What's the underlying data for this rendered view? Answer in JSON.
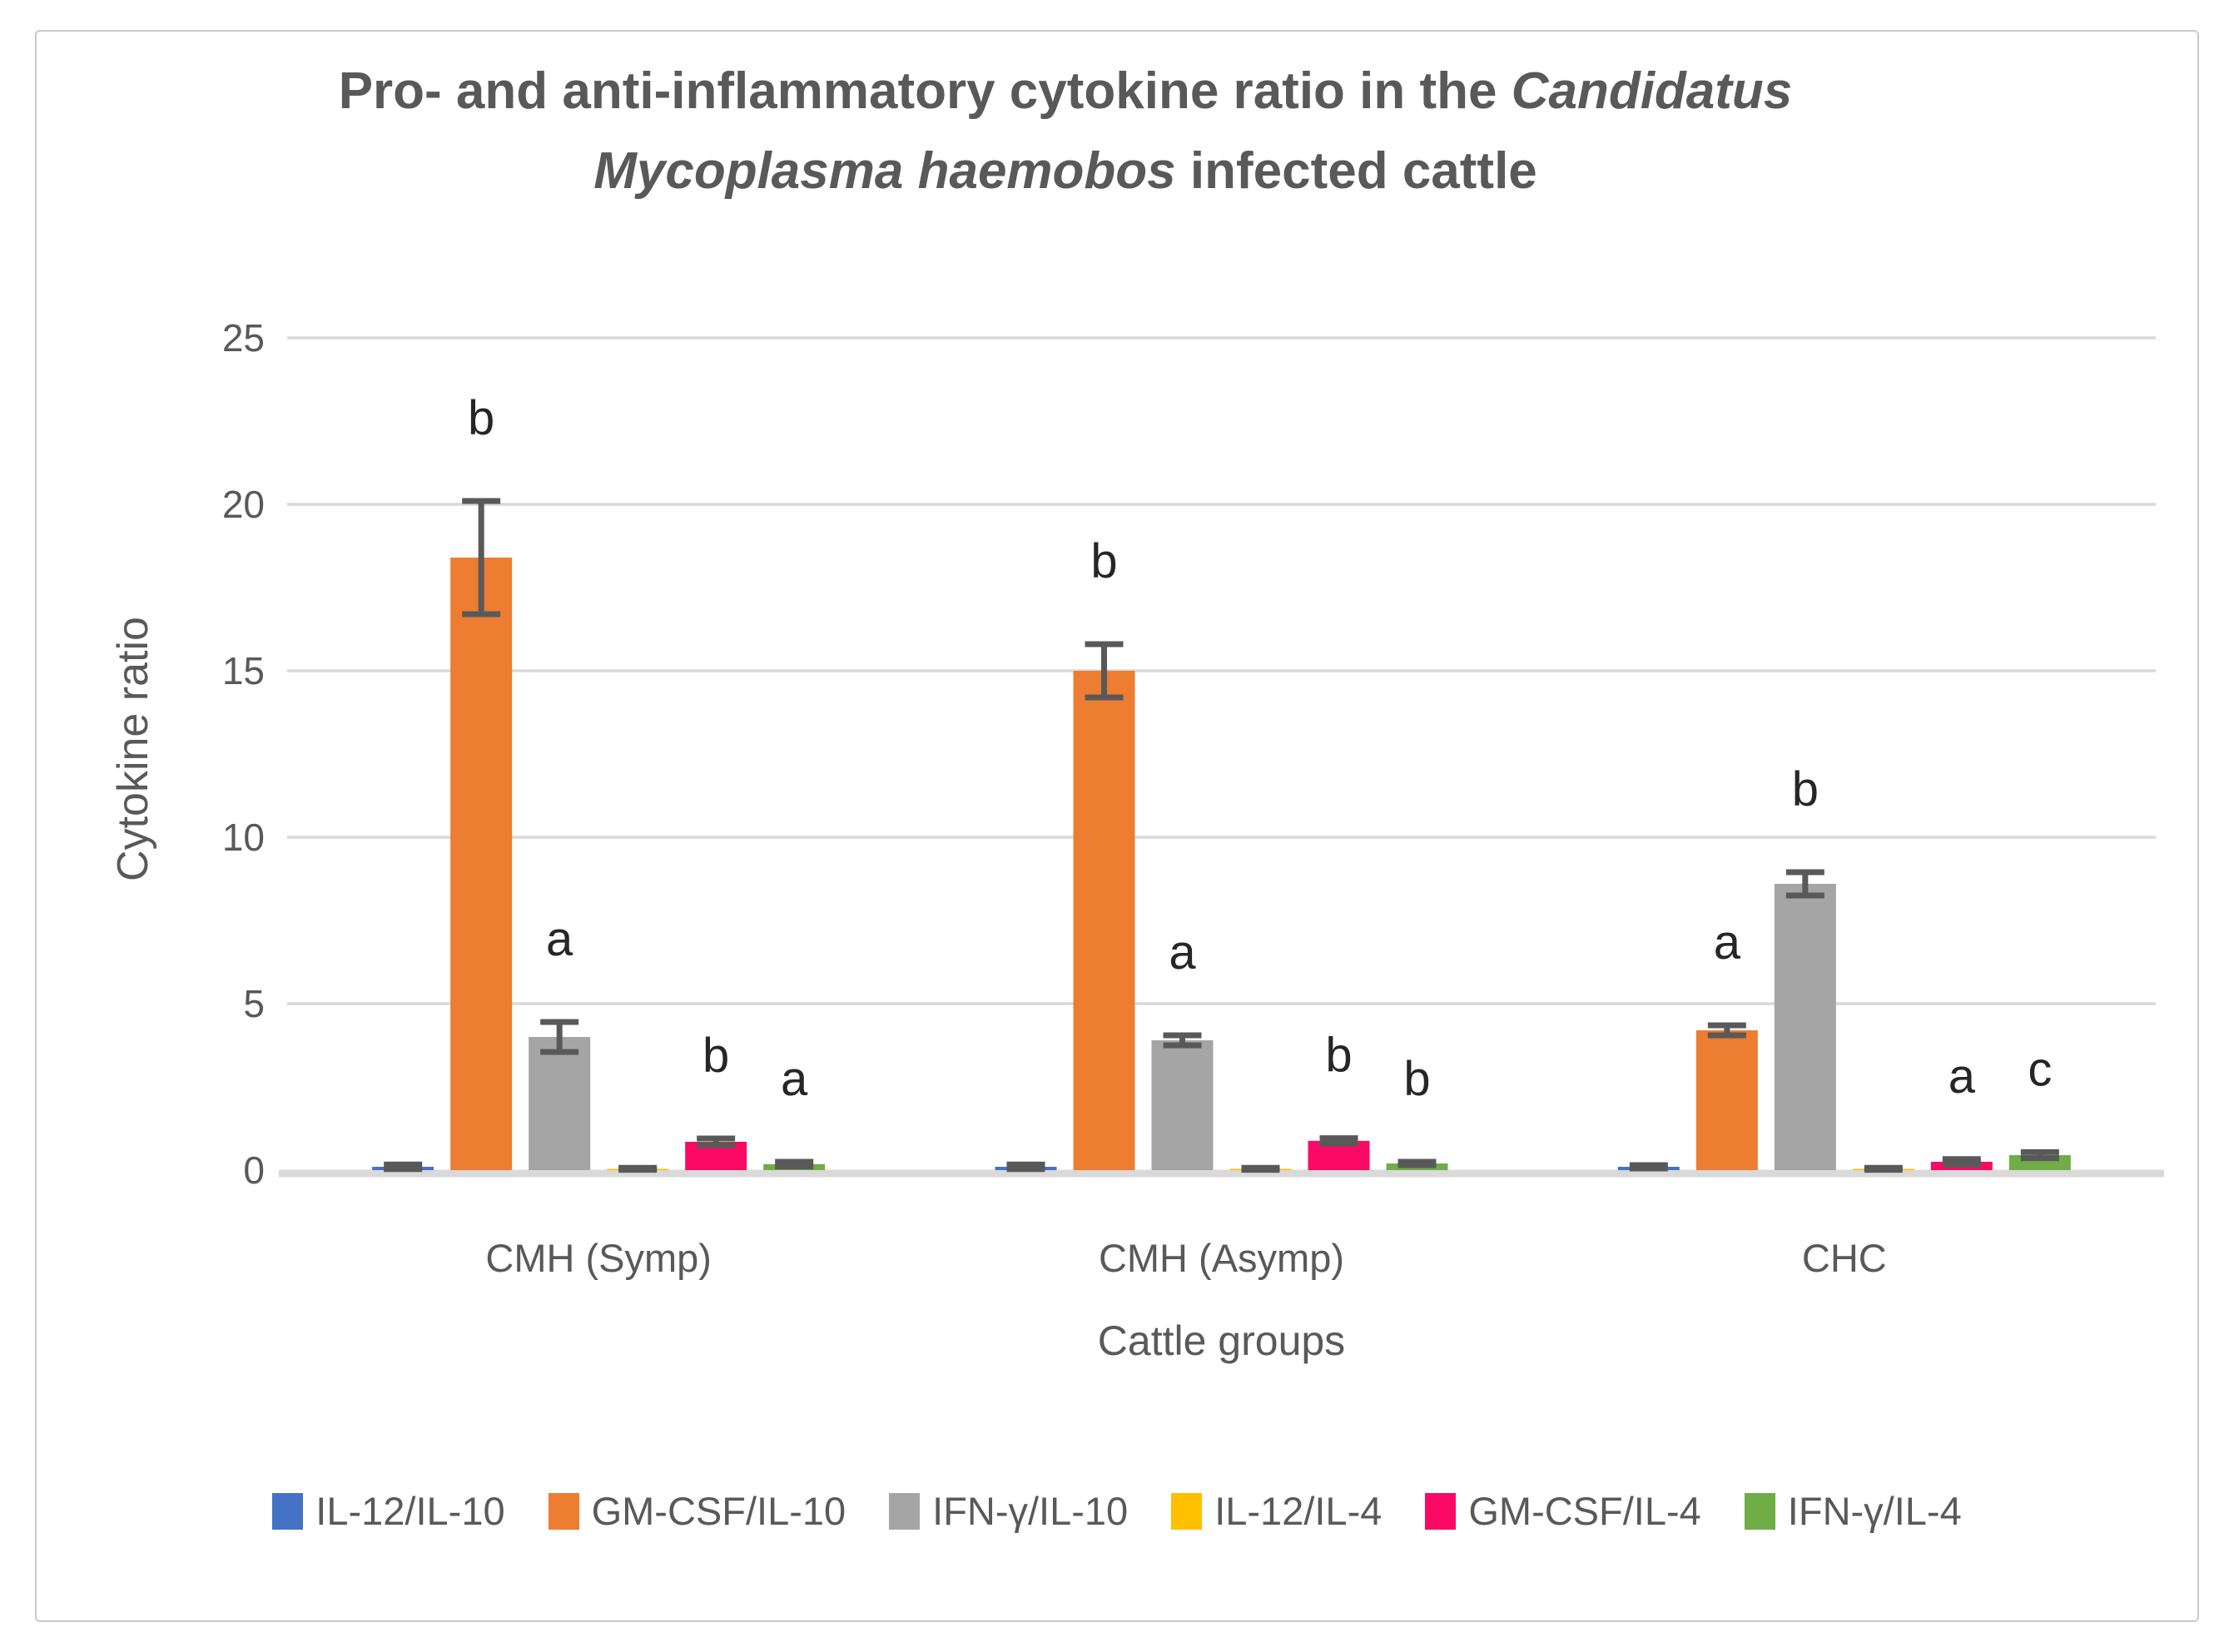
{
  "title": {
    "line1_normal": "Pro- and anti-inflammatory cytokine ratio in the ",
    "line1_italic": "Candidatus",
    "line2_italic": "Mycoplasma haemobos",
    "line2_normal": " infected cattle"
  },
  "y_axis": {
    "ticks": [
      0,
      5,
      10,
      15,
      20,
      25
    ]
  },
  "colors": {
    "text": "#595959",
    "gridline": "#d9d9d9",
    "baseline": "#d9d9d9",
    "error_bar": "#595959",
    "sig_letter": "#262626"
  },
  "chart_data": {
    "type": "bar",
    "title": "Pro- and anti-inflammatory cytokine ratio in the Candidatus Mycoplasma haemobos infected cattle",
    "xlabel": "Cattle groups",
    "ylabel": "Cytokine ratio",
    "ylim": [
      0,
      25
    ],
    "yticks": [
      0,
      5,
      10,
      15,
      20,
      25
    ],
    "grid": true,
    "legend_position": "bottom",
    "categories": [
      "CMH (Symp)",
      "CMH (Asymp)",
      "CHC"
    ],
    "series": [
      {
        "name": "IL-12/IL-10",
        "color": "#4472c4",
        "values": [
          0.1,
          0.1,
          0.1
        ],
        "errors": [
          0.07,
          0.07,
          0.05
        ],
        "letters": [
          "",
          "",
          ""
        ]
      },
      {
        "name": "GM-CSF/IL-10",
        "color": "#ed7d31",
        "values": [
          18.4,
          15.0,
          4.2
        ],
        "errors": [
          1.7,
          0.8,
          0.15
        ],
        "letters": [
          "b",
          "b",
          "a"
        ]
      },
      {
        "name": "IFN-γ/IL-10",
        "color": "#a5a5a5",
        "values": [
          4.0,
          3.9,
          8.6
        ],
        "errors": [
          0.45,
          0.15,
          0.35
        ],
        "letters": [
          "a",
          "a",
          "b"
        ]
      },
      {
        "name": "IL-12/IL-4",
        "color": "#ffc000",
        "values": [
          0.04,
          0.04,
          0.04
        ],
        "errors": [
          0.03,
          0.03,
          0.03
        ],
        "letters": [
          "",
          "",
          ""
        ]
      },
      {
        "name": "GM-CSF/IL-4",
        "color": "#fa0a64",
        "values": [
          0.85,
          0.88,
          0.25
        ],
        "errors": [
          0.1,
          0.08,
          0.08
        ],
        "letters": [
          "b",
          "b",
          "a"
        ]
      },
      {
        "name": "IFN-γ/IL-4",
        "color": "#70ad47",
        "values": [
          0.18,
          0.2,
          0.45
        ],
        "errors": [
          0.07,
          0.05,
          0.09
        ],
        "letters": [
          "a",
          "b",
          "c"
        ]
      }
    ]
  }
}
